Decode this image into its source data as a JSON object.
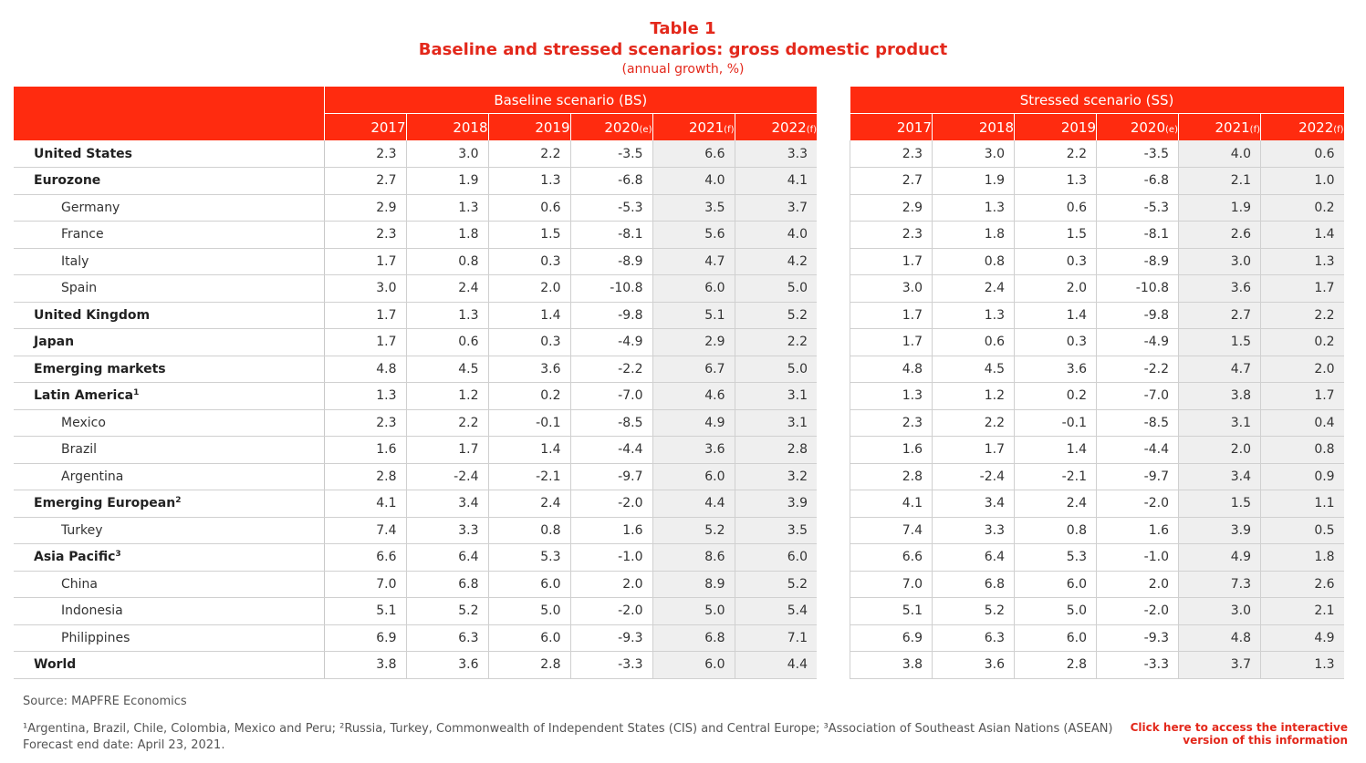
{
  "title": {
    "line1": "Table 1",
    "line2": "Baseline and stressed scenarios: gross domestic product",
    "line3": "(annual growth, %)"
  },
  "baseline": {
    "scenario_label": "Baseline scenario (BS)",
    "years": [
      "2017",
      "2018",
      "2019",
      "2020",
      "2021",
      "2022"
    ],
    "year_suffix": [
      "",
      "",
      "",
      "(e)",
      "(f)",
      "(f)"
    ]
  },
  "stressed": {
    "scenario_label": "Stressed scenario (SS)",
    "years": [
      "2017",
      "2018",
      "2019",
      "2020",
      "2021",
      "2022"
    ],
    "year_suffix": [
      "",
      "",
      "",
      "(e)",
      "(f)",
      "(f)"
    ]
  },
  "rows": [
    {
      "label": "United States",
      "sup": "",
      "level": "main",
      "bs": [
        "2.3",
        "3.0",
        "2.2",
        "-3.5",
        "6.6",
        "3.3"
      ],
      "ss": [
        "2.3",
        "3.0",
        "2.2",
        "-3.5",
        "4.0",
        "0.6"
      ]
    },
    {
      "label": "Eurozone",
      "sup": "",
      "level": "main",
      "bs": [
        "2.7",
        "1.9",
        "1.3",
        "-6.8",
        "4.0",
        "4.1"
      ],
      "ss": [
        "2.7",
        "1.9",
        "1.3",
        "-6.8",
        "2.1",
        "1.0"
      ]
    },
    {
      "label": "Germany",
      "sup": "",
      "level": "sub",
      "bs": [
        "2.9",
        "1.3",
        "0.6",
        "-5.3",
        "3.5",
        "3.7"
      ],
      "ss": [
        "2.9",
        "1.3",
        "0.6",
        "-5.3",
        "1.9",
        "0.2"
      ]
    },
    {
      "label": "France",
      "sup": "",
      "level": "sub",
      "bs": [
        "2.3",
        "1.8",
        "1.5",
        "-8.1",
        "5.6",
        "4.0"
      ],
      "ss": [
        "2.3",
        "1.8",
        "1.5",
        "-8.1",
        "2.6",
        "1.4"
      ]
    },
    {
      "label": "Italy",
      "sup": "",
      "level": "sub",
      "bs": [
        "1.7",
        "0.8",
        "0.3",
        "-8.9",
        "4.7",
        "4.2"
      ],
      "ss": [
        "1.7",
        "0.8",
        "0.3",
        "-8.9",
        "3.0",
        "1.3"
      ]
    },
    {
      "label": "Spain",
      "sup": "",
      "level": "sub",
      "bs": [
        "3.0",
        "2.4",
        "2.0",
        "-10.8",
        "6.0",
        "5.0"
      ],
      "ss": [
        "3.0",
        "2.4",
        "2.0",
        "-10.8",
        "3.6",
        "1.7"
      ]
    },
    {
      "label": "United Kingdom",
      "sup": "",
      "level": "main",
      "bs": [
        "1.7",
        "1.3",
        "1.4",
        "-9.8",
        "5.1",
        "5.2"
      ],
      "ss": [
        "1.7",
        "1.3",
        "1.4",
        "-9.8",
        "2.7",
        "2.2"
      ]
    },
    {
      "label": "Japan",
      "sup": "",
      "level": "main",
      "bs": [
        "1.7",
        "0.6",
        "0.3",
        "-4.9",
        "2.9",
        "2.2"
      ],
      "ss": [
        "1.7",
        "0.6",
        "0.3",
        "-4.9",
        "1.5",
        "0.2"
      ]
    },
    {
      "label": "Emerging markets",
      "sup": "",
      "level": "main",
      "bs": [
        "4.8",
        "4.5",
        "3.6",
        "-2.2",
        "6.7",
        "5.0"
      ],
      "ss": [
        "4.8",
        "4.5",
        "3.6",
        "-2.2",
        "4.7",
        "2.0"
      ]
    },
    {
      "label": "Latin America",
      "sup": "1",
      "level": "main",
      "bs": [
        "1.3",
        "1.2",
        "0.2",
        "-7.0",
        "4.6",
        "3.1"
      ],
      "ss": [
        "1.3",
        "1.2",
        "0.2",
        "-7.0",
        "3.8",
        "1.7"
      ]
    },
    {
      "label": "Mexico",
      "sup": "",
      "level": "sub",
      "bs": [
        "2.3",
        "2.2",
        "-0.1",
        "-8.5",
        "4.9",
        "3.1"
      ],
      "ss": [
        "2.3",
        "2.2",
        "-0.1",
        "-8.5",
        "3.1",
        "0.4"
      ]
    },
    {
      "label": "Brazil",
      "sup": "",
      "level": "sub",
      "bs": [
        "1.6",
        "1.7",
        "1.4",
        "-4.4",
        "3.6",
        "2.8"
      ],
      "ss": [
        "1.6",
        "1.7",
        "1.4",
        "-4.4",
        "2.0",
        "0.8"
      ]
    },
    {
      "label": "Argentina",
      "sup": "",
      "level": "sub",
      "bs": [
        "2.8",
        "-2.4",
        "-2.1",
        "-9.7",
        "6.0",
        "3.2"
      ],
      "ss": [
        "2.8",
        "-2.4",
        "-2.1",
        "-9.7",
        "3.4",
        "0.9"
      ]
    },
    {
      "label": "Emerging European",
      "sup": "2",
      "level": "main",
      "bs": [
        "4.1",
        "3.4",
        "2.4",
        "-2.0",
        "4.4",
        "3.9"
      ],
      "ss": [
        "4.1",
        "3.4",
        "2.4",
        "-2.0",
        "1.5",
        "1.1"
      ]
    },
    {
      "label": "Turkey",
      "sup": "",
      "level": "sub",
      "bs": [
        "7.4",
        "3.3",
        "0.8",
        "1.6",
        "5.2",
        "3.5"
      ],
      "ss": [
        "7.4",
        "3.3",
        "0.8",
        "1.6",
        "3.9",
        "0.5"
      ]
    },
    {
      "label": "Asia Pacific",
      "sup": "3",
      "level": "main",
      "bs": [
        "6.6",
        "6.4",
        "5.3",
        "-1.0",
        "8.6",
        "6.0"
      ],
      "ss": [
        "6.6",
        "6.4",
        "5.3",
        "-1.0",
        "4.9",
        "1.8"
      ]
    },
    {
      "label": "China",
      "sup": "",
      "level": "sub",
      "bs": [
        "7.0",
        "6.8",
        "6.0",
        "2.0",
        "8.9",
        "5.2"
      ],
      "ss": [
        "7.0",
        "6.8",
        "6.0",
        "2.0",
        "7.3",
        "2.6"
      ]
    },
    {
      "label": "Indonesia",
      "sup": "",
      "level": "sub",
      "bs": [
        "5.1",
        "5.2",
        "5.0",
        "-2.0",
        "5.0",
        "5.4"
      ],
      "ss": [
        "5.1",
        "5.2",
        "5.0",
        "-2.0",
        "3.0",
        "2.1"
      ]
    },
    {
      "label": "Philippines",
      "sup": "",
      "level": "sub",
      "bs": [
        "6.9",
        "6.3",
        "6.0",
        "-9.3",
        "6.8",
        "7.1"
      ],
      "ss": [
        "6.9",
        "6.3",
        "6.0",
        "-9.3",
        "4.8",
        "4.9"
      ]
    },
    {
      "label": "World",
      "sup": "",
      "level": "main",
      "bs": [
        "3.8",
        "3.6",
        "2.8",
        "-3.3",
        "6.0",
        "4.4"
      ],
      "ss": [
        "3.8",
        "3.6",
        "2.8",
        "-3.3",
        "3.7",
        "1.3"
      ]
    }
  ],
  "source": "Source: MAPFRE Economics",
  "footnotes": {
    "text": "¹Argentina, Brazil, Chile, Colombia, Mexico and Peru; ²Russia, Turkey, Commonwealth of Independent States (CIS) and Central Europe; ³Association of Southeast Asian Nations (ASEAN)",
    "forecast": "Forecast end date: April 23, 2021."
  },
  "link": {
    "line1": "Click here to access the interactive",
    "line2": "version of this information"
  },
  "colors": {
    "accent": "#ff2b0f",
    "title": "#e3281b",
    "forecast_bg": "#efefef"
  }
}
